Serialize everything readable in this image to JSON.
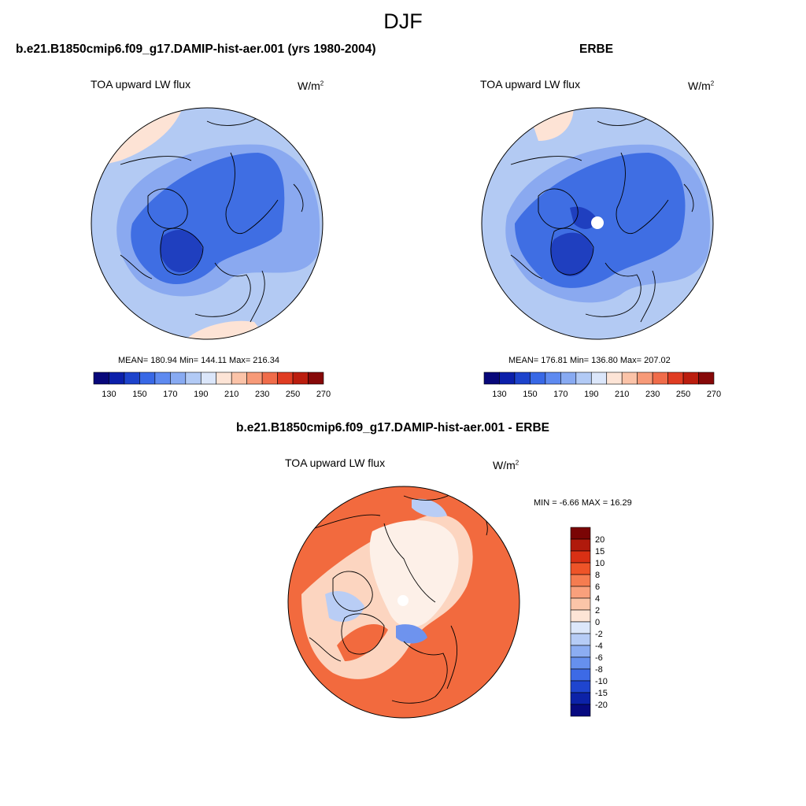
{
  "page_title": "DJF",
  "panels": [
    {
      "title": "b.e21.B1850cmip6.f09_g17.DAMIP-hist-aer.001 (yrs 1980-2004)",
      "left_label": "TOA upward LW flux",
      "units_base": "W/m",
      "units_exp": "2",
      "stats_text": "MEAN= 180.94  Min= 144.11  Max= 216.34",
      "mean": 180.94,
      "min": 144.11,
      "max": 216.34,
      "has_pole_hole": false
    },
    {
      "title": "ERBE",
      "left_label": "TOA upward LW flux",
      "units_base": "W/m",
      "units_exp": "2",
      "stats_text": "MEAN= 176.81  Min= 136.80  Max= 207.02",
      "mean": 176.81,
      "min": 136.8,
      "max": 207.02,
      "has_pole_hole": true
    },
    {
      "title": "b.e21.B1850cmip6.f09_g17.DAMIP-hist-aer.001 - ERBE",
      "left_label": "TOA upward LW flux",
      "units_base": "W/m",
      "units_exp": "2",
      "stats_text": "MIN =  -6.66 MAX =  16.29",
      "mean": null,
      "min": -6.66,
      "max": 16.29,
      "has_pole_hole": true
    }
  ],
  "colorbar_abs": {
    "tick_labels": [
      "130",
      "150",
      "170",
      "190",
      "210",
      "230",
      "250",
      "270"
    ],
    "colors": [
      "#08087a",
      "#0b1faa",
      "#1d43cc",
      "#3868e6",
      "#5e8af0",
      "#88aaf2",
      "#b2caf5",
      "#dbe6fa",
      "#fde4d6",
      "#fbc3a8",
      "#f79a78",
      "#f06c4a",
      "#e03c22",
      "#bb1d0e",
      "#860808"
    ]
  },
  "colorbar_diff": {
    "tick_labels": [
      "20",
      "15",
      "10",
      "8",
      "6",
      "4",
      "2",
      "0",
      "-2",
      "-4",
      "-6",
      "-8",
      "-10",
      "-15",
      "-20"
    ],
    "colors": [
      "#7a0505",
      "#b01a0c",
      "#d93014",
      "#ee5428",
      "#f57c50",
      "#f9a07c",
      "#fbc5a8",
      "#fde5d6",
      "#dce7fa",
      "#b6ccf6",
      "#8cadf2",
      "#6690ee",
      "#3d6ae6",
      "#1f45cf",
      "#0c22a8",
      "#070a80"
    ]
  },
  "maps": {
    "abs_background_color": "#b3caf3",
    "abs_low_color": "#3f6ee3",
    "abs_mid_color": "#8aa9f0",
    "abs_min_color": "#1f3fbf",
    "abs_warm_color": "#fde3d5",
    "diff_background_color": "#f26a3e",
    "diff_light_color": "#fcd5c0",
    "diff_white_color": "#fdf0e8",
    "diff_cool_color": "#b9cdf5",
    "diff_blue_color": "#6e93ee",
    "coast_color": "#000000"
  }
}
